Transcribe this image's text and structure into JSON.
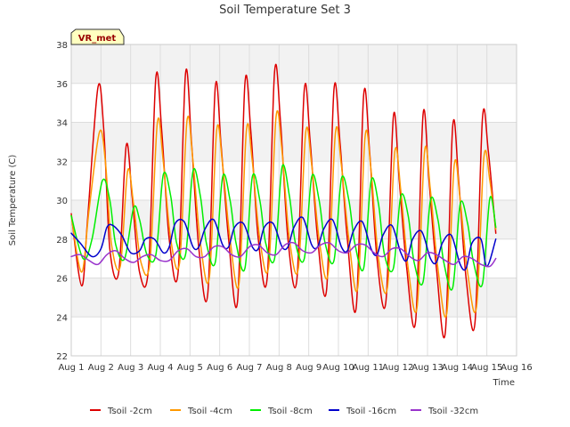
{
  "chart_data": {
    "type": "line",
    "title": "Soil Temperature Set 3",
    "xlabel": "Time",
    "ylabel": "Soil Temperature (C)",
    "station_badge": "VR_met",
    "xlim": [
      1,
      16
    ],
    "ylim": [
      22,
      38
    ],
    "x_ticks": [
      {
        "value": 1,
        "label": "Aug 1"
      },
      {
        "value": 2,
        "label": "Aug 2"
      },
      {
        "value": 3,
        "label": "Aug 3"
      },
      {
        "value": 4,
        "label": "Aug 4"
      },
      {
        "value": 5,
        "label": "Aug 5"
      },
      {
        "value": 6,
        "label": "Aug 6"
      },
      {
        "value": 7,
        "label": "Aug 7"
      },
      {
        "value": 8,
        "label": "Aug 8"
      },
      {
        "value": 9,
        "label": "Aug 9"
      },
      {
        "value": 10,
        "label": "Aug 10"
      },
      {
        "value": 11,
        "label": "Aug 11"
      },
      {
        "value": 12,
        "label": "Aug 12"
      },
      {
        "value": 13,
        "label": "Aug 13"
      },
      {
        "value": 14,
        "label": "Aug 14"
      },
      {
        "value": 15,
        "label": "Aug 15"
      },
      {
        "value": 16,
        "label": "Aug 16"
      }
    ],
    "y_ticks": [
      {
        "value": 22,
        "label": "22"
      },
      {
        "value": 24,
        "label": "24"
      },
      {
        "value": 26,
        "label": "26"
      },
      {
        "value": 28,
        "label": "28"
      },
      {
        "value": 30,
        "label": "30"
      },
      {
        "value": 32,
        "label": "32"
      },
      {
        "value": 34,
        "label": "34"
      },
      {
        "value": 36,
        "label": "36"
      },
      {
        "value": 38,
        "label": "38"
      }
    ],
    "grid": true,
    "legend_position": "bottom",
    "series": [
      {
        "name": "Tsoil -2cm",
        "color": "#dd0000",
        "x": [
          1.0,
          1.35,
          1.55,
          1.9,
          2.1,
          2.3,
          2.6,
          2.85,
          3.05,
          3.3,
          3.6,
          3.85,
          4.05,
          4.3,
          4.6,
          4.85,
          5.05,
          5.3,
          5.6,
          5.85,
          6.05,
          6.3,
          6.6,
          6.85,
          7.05,
          7.3,
          7.6,
          7.85,
          8.05,
          8.3,
          8.6,
          8.85,
          9.05,
          9.3,
          9.6,
          9.85,
          10.05,
          10.3,
          10.6,
          10.85,
          11.05,
          11.3,
          11.6,
          11.85,
          12.05,
          12.3,
          12.6,
          12.85,
          13.05,
          13.3,
          13.6,
          13.85,
          14.05,
          14.3,
          14.6,
          14.85,
          15.05,
          15.3
        ],
        "y": [
          29.3,
          25.6,
          29.0,
          35.8,
          33.5,
          27.5,
          26.3,
          32.8,
          30.2,
          26.3,
          26.5,
          36.3,
          33.5,
          28.0,
          26.3,
          36.5,
          33.0,
          27.5,
          25.2,
          35.8,
          32.8,
          28.0,
          24.8,
          36.0,
          33.5,
          28.0,
          26.0,
          36.6,
          34.0,
          28.0,
          25.9,
          35.7,
          33.0,
          28.0,
          25.4,
          35.7,
          33.0,
          28.0,
          24.5,
          35.4,
          32.5,
          27.0,
          24.8,
          34.3,
          31.0,
          26.5,
          23.8,
          34.4,
          31.0,
          26.5,
          23.2,
          33.8,
          31.0,
          26.0,
          23.7,
          34.2,
          32.5,
          28.3
        ]
      },
      {
        "name": "Tsoil -4cm",
        "color": "#ff9900",
        "x": [
          1.0,
          1.35,
          1.6,
          1.95,
          2.15,
          2.35,
          2.65,
          2.9,
          3.1,
          3.35,
          3.65,
          3.9,
          4.1,
          4.35,
          4.65,
          4.9,
          5.1,
          5.35,
          5.65,
          5.9,
          6.1,
          6.35,
          6.65,
          6.9,
          7.1,
          7.35,
          7.65,
          7.9,
          8.1,
          8.35,
          8.65,
          8.9,
          9.1,
          9.35,
          9.65,
          9.9,
          10.1,
          10.35,
          10.65,
          10.9,
          11.1,
          11.35,
          11.65,
          11.9,
          12.1,
          12.35,
          12.65,
          12.9,
          13.1,
          13.35,
          13.65,
          13.9,
          14.1,
          14.35,
          14.65,
          14.9,
          15.1,
          15.3
        ],
        "y": [
          29.2,
          26.3,
          29.5,
          33.5,
          32.0,
          27.8,
          26.6,
          31.5,
          29.8,
          26.8,
          26.8,
          34.0,
          32.0,
          28.0,
          26.8,
          34.1,
          32.0,
          27.8,
          26.0,
          33.6,
          31.8,
          28.0,
          25.7,
          33.6,
          32.0,
          28.0,
          26.6,
          34.3,
          32.5,
          28.0,
          26.5,
          33.5,
          31.8,
          28.0,
          26.2,
          33.5,
          31.8,
          28.0,
          25.5,
          33.3,
          31.5,
          27.0,
          25.5,
          32.5,
          30.5,
          26.5,
          24.5,
          32.5,
          30.5,
          26.5,
          24.2,
          31.8,
          30.0,
          26.3,
          24.5,
          32.2,
          31.0,
          28.5
        ]
      },
      {
        "name": "Tsoil -8cm",
        "color": "#00ee00",
        "x": [
          1.0,
          1.4,
          1.7,
          2.05,
          2.3,
          2.5,
          2.8,
          3.1,
          3.3,
          3.55,
          3.85,
          4.1,
          4.35,
          4.55,
          4.85,
          5.1,
          5.35,
          5.55,
          5.85,
          6.1,
          6.35,
          6.55,
          6.85,
          7.1,
          7.35,
          7.55,
          7.85,
          8.1,
          8.35,
          8.55,
          8.85,
          9.1,
          9.35,
          9.55,
          9.85,
          10.1,
          10.35,
          10.55,
          10.85,
          11.1,
          11.35,
          11.55,
          11.85,
          12.1,
          12.35,
          12.55,
          12.85,
          13.1,
          13.35,
          13.55,
          13.85,
          14.1,
          14.35,
          14.55,
          14.85,
          15.1,
          15.3
        ],
        "y": [
          29.2,
          27.0,
          28.0,
          31.0,
          30.0,
          27.7,
          27.0,
          29.6,
          29.0,
          27.2,
          27.2,
          31.3,
          30.2,
          27.8,
          27.2,
          31.5,
          30.2,
          27.8,
          26.8,
          31.2,
          30.0,
          27.8,
          26.5,
          31.2,
          30.0,
          27.8,
          27.0,
          31.7,
          30.2,
          27.8,
          27.0,
          31.2,
          30.0,
          27.8,
          26.9,
          31.1,
          30.0,
          27.8,
          26.5,
          31.0,
          29.8,
          27.2,
          26.5,
          30.2,
          29.2,
          26.8,
          25.8,
          30.0,
          29.0,
          26.8,
          25.5,
          29.8,
          28.8,
          26.8,
          25.7,
          30.1,
          28.6
        ]
      },
      {
        "name": "Tsoil -16cm",
        "color": "#0000cc",
        "x": [
          1.0,
          1.3,
          1.7,
          2.0,
          2.2,
          2.4,
          2.7,
          3.0,
          3.3,
          3.5,
          3.8,
          4.1,
          4.3,
          4.5,
          4.8,
          5.1,
          5.3,
          5.5,
          5.8,
          6.1,
          6.3,
          6.5,
          6.8,
          7.1,
          7.3,
          7.5,
          7.8,
          8.1,
          8.3,
          8.5,
          8.8,
          9.1,
          9.3,
          9.5,
          9.8,
          10.1,
          10.3,
          10.5,
          10.8,
          11.1,
          11.3,
          11.5,
          11.8,
          12.1,
          12.3,
          12.5,
          12.8,
          13.1,
          13.3,
          13.5,
          13.8,
          14.1,
          14.3,
          14.5,
          14.8,
          15.0,
          15.3
        ],
        "y": [
          28.3,
          27.8,
          27.1,
          27.5,
          28.6,
          28.7,
          28.2,
          27.3,
          27.4,
          28.0,
          28.0,
          27.3,
          27.6,
          28.8,
          28.9,
          27.6,
          27.6,
          28.5,
          29.0,
          27.7,
          27.6,
          28.6,
          28.8,
          27.6,
          27.5,
          28.6,
          28.8,
          27.6,
          27.6,
          28.6,
          29.1,
          27.7,
          27.6,
          28.5,
          29.0,
          27.6,
          27.4,
          28.4,
          28.9,
          27.5,
          27.2,
          28.2,
          28.7,
          27.3,
          26.9,
          28.0,
          28.4,
          27.0,
          26.8,
          27.8,
          28.2,
          26.7,
          26.5,
          27.8,
          28.0,
          26.6,
          28.0
        ]
      },
      {
        "name": "Tsoil -32cm",
        "color": "#9933cc",
        "x": [
          1.0,
          1.3,
          1.6,
          1.9,
          2.2,
          2.5,
          2.8,
          3.1,
          3.4,
          3.7,
          4.0,
          4.3,
          4.6,
          4.9,
          5.2,
          5.5,
          5.8,
          6.1,
          6.4,
          6.7,
          7.0,
          7.3,
          7.6,
          7.9,
          8.2,
          8.5,
          8.8,
          9.1,
          9.4,
          9.7,
          10.0,
          10.3,
          10.6,
          10.9,
          11.2,
          11.5,
          11.8,
          12.1,
          12.4,
          12.7,
          13.0,
          13.3,
          13.6,
          13.9,
          14.2,
          14.5,
          14.8,
          15.1,
          15.3
        ],
        "y": [
          27.1,
          27.2,
          26.9,
          26.7,
          27.2,
          27.4,
          27.0,
          26.8,
          27.1,
          27.2,
          26.9,
          26.9,
          27.4,
          27.5,
          27.1,
          27.1,
          27.6,
          27.6,
          27.2,
          27.1,
          27.6,
          27.7,
          27.3,
          27.2,
          27.7,
          27.8,
          27.4,
          27.3,
          27.7,
          27.8,
          27.4,
          27.3,
          27.7,
          27.7,
          27.3,
          27.1,
          27.5,
          27.5,
          27.1,
          26.9,
          27.3,
          27.2,
          26.9,
          26.7,
          27.1,
          27.0,
          26.7,
          26.6,
          27.0
        ]
      }
    ]
  }
}
